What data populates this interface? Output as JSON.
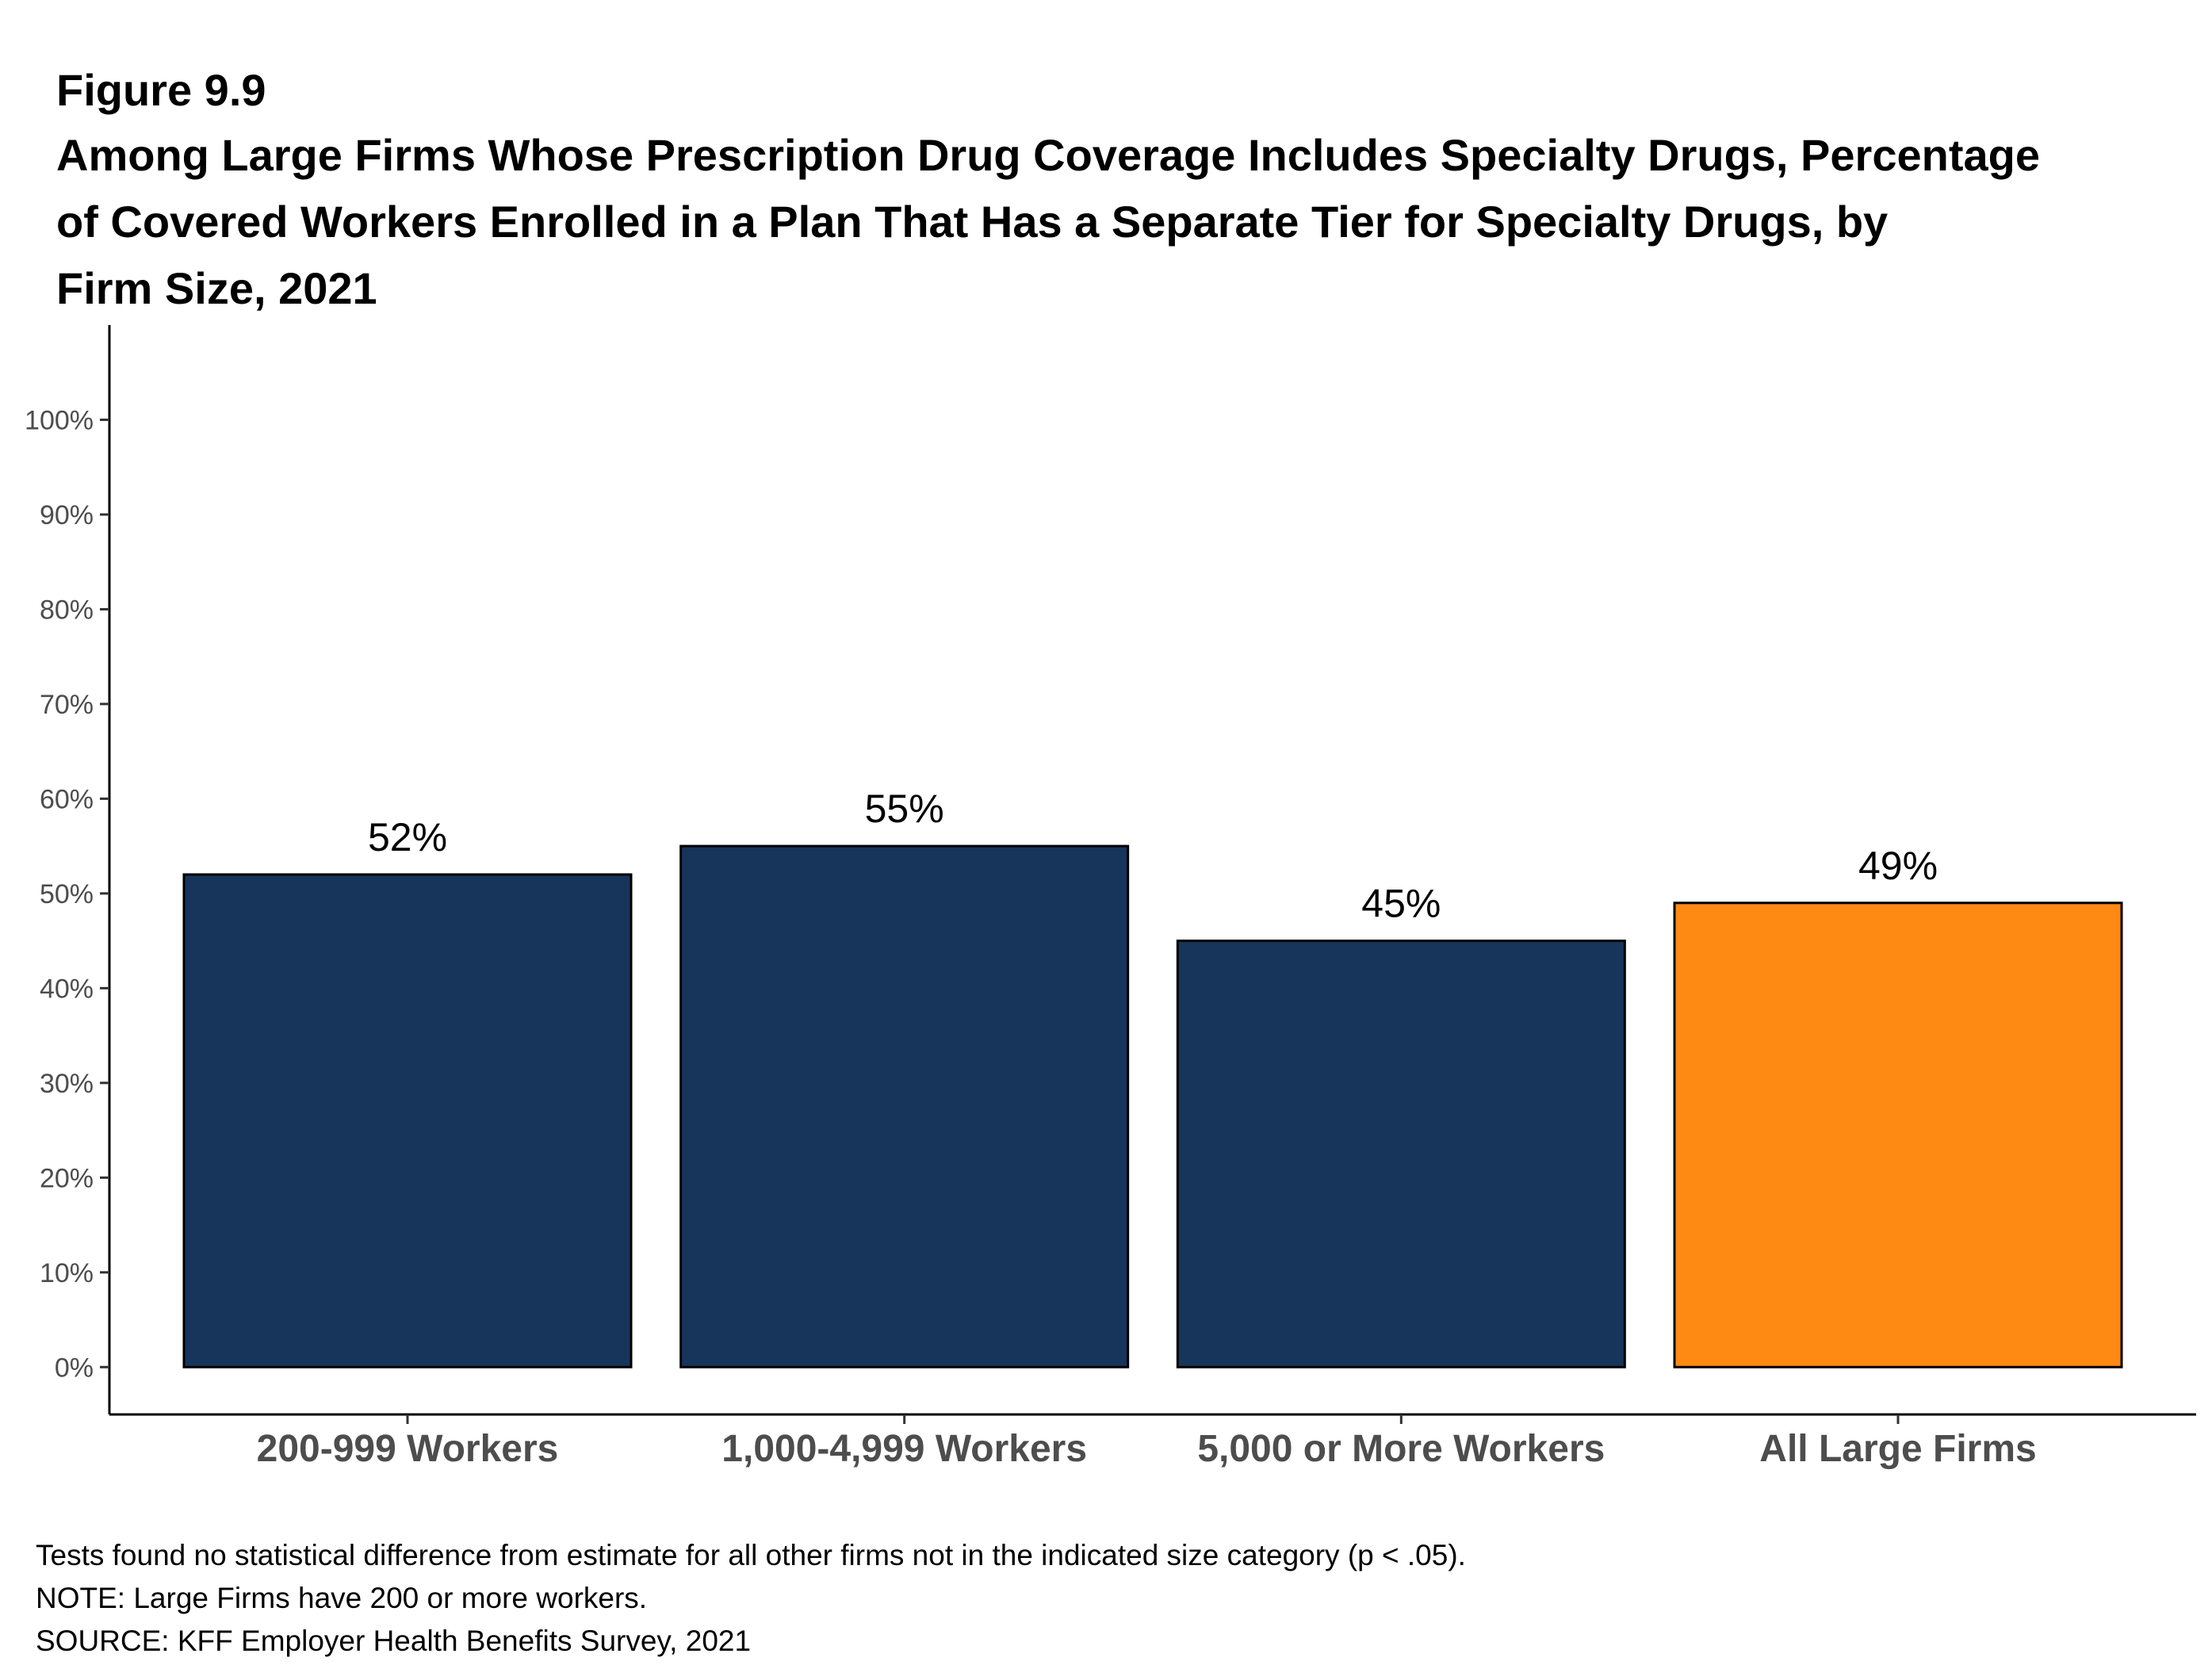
{
  "figure": {
    "label": "Figure 9.9",
    "title_lines": [
      "Among Large Firms Whose Prescription Drug Coverage Includes Specialty Drugs, Percentage",
      "of Covered Workers Enrolled in a Plan That Has a Separate Tier for Specialty Drugs, by",
      "Firm Size, 2021"
    ]
  },
  "chart_data": {
    "type": "bar",
    "title": "Among Large Firms Whose Prescription Drug Coverage Includes Specialty Drugs, Percentage of Covered Workers Enrolled in a Plan That Has a Separate Tier for Specialty Drugs, by Firm Size, 2021",
    "xlabel": "",
    "ylabel": "",
    "categories": [
      "200-999 Workers",
      "1,000-4,999 Workers",
      "5,000 or More Workers",
      "All Large Firms"
    ],
    "values": [
      52,
      55,
      45,
      49
    ],
    "value_labels": [
      "52%",
      "55%",
      "45%",
      "49%"
    ],
    "bar_colors": [
      "#17355a",
      "#17355a",
      "#17355a",
      "#fe8913"
    ],
    "ylim": [
      -5,
      110
    ],
    "yticks": [
      0,
      10,
      20,
      30,
      40,
      50,
      60,
      70,
      80,
      90,
      100
    ],
    "ytick_labels": [
      "0%",
      "10%",
      "20%",
      "30%",
      "40%",
      "50%",
      "60%",
      "70%",
      "80%",
      "90%",
      "100%"
    ],
    "grid": false,
    "legend": "none"
  },
  "notes": {
    "line1": "Tests found no statistical difference from estimate for all other firms not in the indicated size category (p < .05).",
    "line2": "NOTE: Large Firms have 200 or more workers.",
    "line3": "SOURCE: KFF Employer Health Benefits Survey, 2021"
  }
}
